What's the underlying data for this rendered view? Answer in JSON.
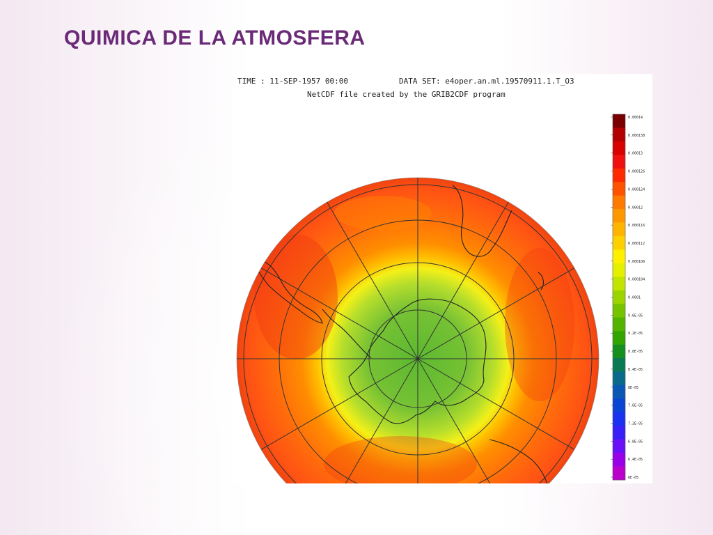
{
  "slide": {
    "title": "QUIMICA DE LA ATMOSFERA"
  },
  "figure": {
    "time_label": "TIME : 11-SEP-1957 00:00",
    "dataset_label": "DATA SET: e4oper.an.ml.19570911.1.T_O3",
    "subtitle": "NetCDF file created by the GRIB2CDF program",
    "projection": "orthographic south-polar",
    "colorbar": {
      "colors": [
        "#7a0000",
        "#b30000",
        "#d90000",
        "#f01010",
        "#ff2a00",
        "#ff5200",
        "#ff7a00",
        "#ff9800",
        "#ffb400",
        "#ffd000",
        "#fff000",
        "#e4f000",
        "#c2e400",
        "#9cd400",
        "#76c400",
        "#52b400",
        "#34a400",
        "#168e20",
        "#0a7a55",
        "#0a6a8a",
        "#0a58b4",
        "#0a44d4",
        "#1a32f0",
        "#3a20f8",
        "#6a10f8",
        "#9a00e8",
        "#bb00cc"
      ],
      "tick_labels": [
        "0.00014",
        "0.000138",
        "0.00013",
        "0.000126",
        "0.000124",
        "0.00012",
        "0.000116",
        "0.000112",
        "0.000108",
        "0.000104",
        "0.0001",
        "9.6E-05",
        "9.2E-05",
        "8.8E-05",
        "8.4E-05",
        "8E-05",
        "7.6E-05",
        "7.2E-05",
        "6.8E-05",
        "6.4E-05",
        "6E-05"
      ]
    }
  }
}
